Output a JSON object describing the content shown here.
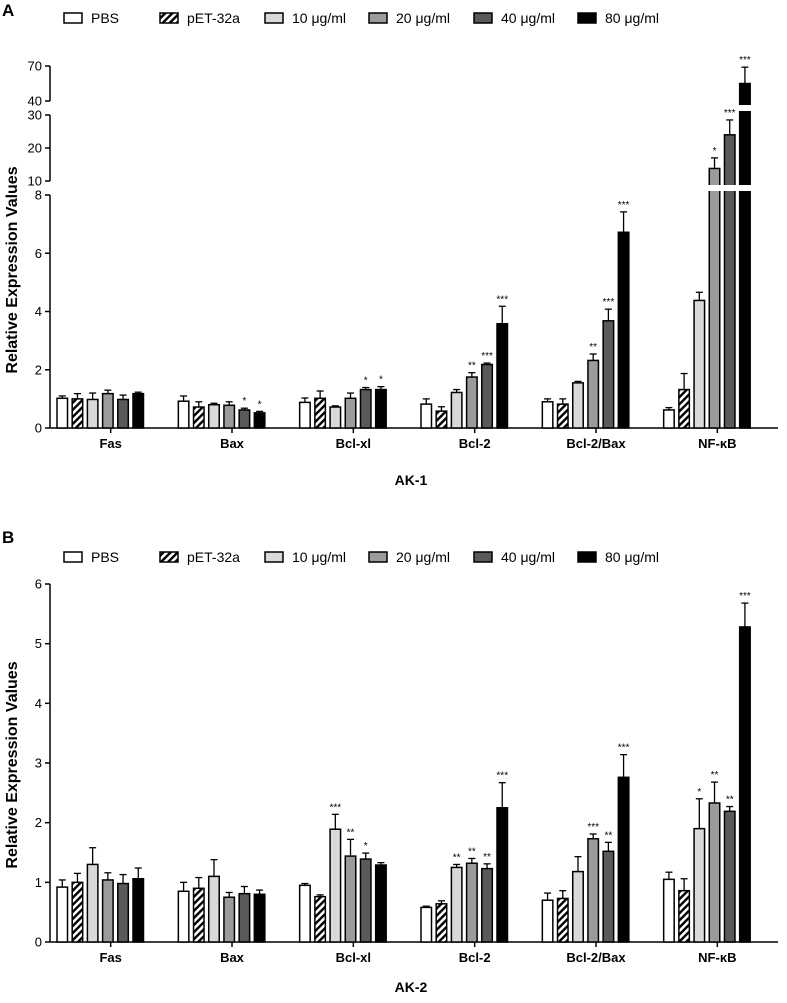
{
  "chart_data": [
    {
      "panel": "A",
      "type": "bar",
      "xlabel": "AK-1",
      "ylabel": "Relative Expression Values",
      "categories": [
        "Fas",
        "Bax",
        "Bcl-xl",
        "Bcl-2",
        "Bcl-2/Bax",
        "NF-κB"
      ],
      "legend": [
        "PBS",
        "pET-32a",
        "10 μg/ml",
        "20 μg/ml",
        "40 μg/ml",
        "80 μg/ml"
      ],
      "y_axis_segments": [
        {
          "range": [
            0,
            8
          ],
          "ticks": [
            "0",
            "2",
            "4",
            "6",
            "8"
          ]
        },
        {
          "range": [
            10,
            30
          ],
          "ticks": [
            "10",
            "20",
            "30"
          ]
        },
        {
          "range": [
            40,
            70
          ],
          "ticks": [
            "40",
            "70"
          ]
        }
      ],
      "series": [
        {
          "name": "PBS",
          "values": [
            1.02,
            0.92,
            0.88,
            0.82,
            0.9,
            0.62
          ],
          "errors": [
            0.08,
            0.18,
            0.15,
            0.18,
            0.1,
            0.08
          ]
        },
        {
          "name": "pET-32a",
          "values": [
            1.0,
            0.72,
            1.02,
            0.58,
            0.82,
            1.32
          ],
          "errors": [
            0.18,
            0.18,
            0.25,
            0.15,
            0.18,
            0.55
          ]
        },
        {
          "name": "10 μg/ml",
          "values": [
            0.98,
            0.8,
            0.72,
            1.22,
            1.55,
            4.38
          ],
          "errors": [
            0.22,
            0.05,
            0.04,
            0.1,
            0.05,
            0.28
          ]
        },
        {
          "name": "20 μg/ml",
          "values": [
            1.18,
            0.78,
            1.02,
            1.75,
            2.32,
            13.8
          ],
          "errors": [
            0.12,
            0.12,
            0.18,
            0.15,
            0.22,
            3.2
          ]
        },
        {
          "name": "40 μg/ml",
          "values": [
            0.98,
            0.62,
            1.32,
            2.18,
            3.68,
            24.0
          ],
          "errors": [
            0.15,
            0.06,
            0.07,
            0.05,
            0.4,
            4.5
          ]
        },
        {
          "name": "80 μg/ml",
          "values": [
            1.18,
            0.52,
            1.32,
            3.58,
            6.72,
            55.0
          ],
          "errors": [
            0.05,
            0.05,
            0.1,
            0.6,
            0.7,
            14.0
          ]
        }
      ],
      "significance": [
        {
          "category": 1,
          "series": 4,
          "label": "*"
        },
        {
          "category": 1,
          "series": 5,
          "label": "*"
        },
        {
          "category": 2,
          "series": 4,
          "label": "*"
        },
        {
          "category": 2,
          "series": 5,
          "label": "*"
        },
        {
          "category": 3,
          "series": 3,
          "label": "**"
        },
        {
          "category": 3,
          "series": 4,
          "label": "***"
        },
        {
          "category": 3,
          "series": 5,
          "label": "***"
        },
        {
          "category": 4,
          "series": 3,
          "label": "**"
        },
        {
          "category": 4,
          "series": 4,
          "label": "***"
        },
        {
          "category": 4,
          "series": 5,
          "label": "***"
        },
        {
          "category": 5,
          "series": 3,
          "label": "*"
        },
        {
          "category": 5,
          "series": 4,
          "label": "***"
        },
        {
          "category": 5,
          "series": 5,
          "label": "***"
        }
      ]
    },
    {
      "panel": "B",
      "type": "bar",
      "xlabel": "AK-2",
      "ylabel": "Relative Expression Values",
      "categories": [
        "Fas",
        "Bax",
        "Bcl-xl",
        "Bcl-2",
        "Bcl-2/Bax",
        "NF-κB"
      ],
      "legend": [
        "PBS",
        "pET-32a",
        "10 μg/ml",
        "20 μg/ml",
        "40 μg/ml",
        "80 μg/ml"
      ],
      "ylim": [
        0,
        6
      ],
      "yticks": [
        "0",
        "1",
        "2",
        "3",
        "4",
        "5",
        "6"
      ],
      "series": [
        {
          "name": "PBS",
          "values": [
            0.92,
            0.85,
            0.95,
            0.58,
            0.7,
            1.05
          ],
          "errors": [
            0.12,
            0.15,
            0.03,
            0.02,
            0.12,
            0.12
          ]
        },
        {
          "name": "pET-32a",
          "values": [
            1.0,
            0.9,
            0.76,
            0.64,
            0.73,
            0.86
          ],
          "errors": [
            0.15,
            0.18,
            0.03,
            0.05,
            0.13,
            0.2
          ]
        },
        {
          "name": "10 μg/ml",
          "values": [
            1.3,
            1.1,
            1.89,
            1.25,
            1.18,
            1.9
          ],
          "errors": [
            0.28,
            0.28,
            0.25,
            0.05,
            0.25,
            0.5
          ]
        },
        {
          "name": "20 μg/ml",
          "values": [
            1.04,
            0.75,
            1.44,
            1.32,
            1.73,
            2.33
          ],
          "errors": [
            0.12,
            0.08,
            0.28,
            0.08,
            0.08,
            0.35
          ]
        },
        {
          "name": "40 μg/ml",
          "values": [
            0.98,
            0.81,
            1.39,
            1.23,
            1.52,
            2.19
          ],
          "errors": [
            0.15,
            0.12,
            0.1,
            0.08,
            0.15,
            0.08
          ]
        },
        {
          "name": "80 μg/ml",
          "values": [
            1.06,
            0.8,
            1.29,
            2.25,
            2.76,
            5.28
          ],
          "errors": [
            0.18,
            0.07,
            0.04,
            0.42,
            0.38,
            0.4
          ]
        }
      ],
      "significance": [
        {
          "category": 2,
          "series": 2,
          "label": "***"
        },
        {
          "category": 2,
          "series": 3,
          "label": "**"
        },
        {
          "category": 2,
          "series": 4,
          "label": "*"
        },
        {
          "category": 3,
          "series": 2,
          "label": "**"
        },
        {
          "category": 3,
          "series": 3,
          "label": "**"
        },
        {
          "category": 3,
          "series": 4,
          "label": "**"
        },
        {
          "category": 3,
          "series": 5,
          "label": "***"
        },
        {
          "category": 4,
          "series": 3,
          "label": "***"
        },
        {
          "category": 4,
          "series": 4,
          "label": "**"
        },
        {
          "category": 4,
          "series": 5,
          "label": "***"
        },
        {
          "category": 5,
          "series": 2,
          "label": "*"
        },
        {
          "category": 5,
          "series": 3,
          "label": "**"
        },
        {
          "category": 5,
          "series": 4,
          "label": "**"
        },
        {
          "category": 5,
          "series": 5,
          "label": "***"
        }
      ]
    }
  ],
  "style": {
    "series_fills": [
      "#ffffff",
      "hatch",
      "#d9d9d9",
      "#9b9b9b",
      "#5a5a5a",
      "#000000"
    ]
  }
}
